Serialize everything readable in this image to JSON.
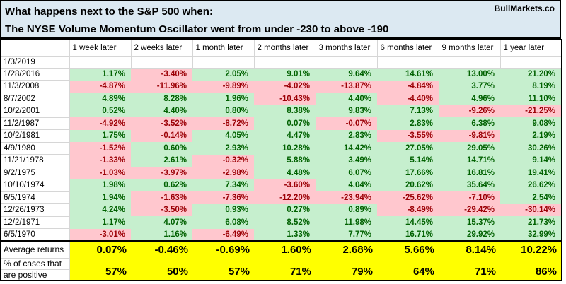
{
  "header": {
    "title_line1": "What happens next to the S&P 500 when:",
    "title_line2": "The NYSE Volume Momentum Oscillator went from under -230 to above -190",
    "brand": "BullMarkets.co"
  },
  "chart_data": {
    "type": "table",
    "columns": [
      "1 week later",
      "2 weeks later",
      "1 month later",
      "2 months later",
      "3 months later",
      "6 months later",
      "9 months later",
      "1 year later"
    ],
    "empty_row_date": "1/3/2019",
    "rows": [
      {
        "date": "1/28/2016",
        "values": [
          "1.17%",
          "-3.40%",
          "2.05%",
          "9.01%",
          "9.64%",
          "14.61%",
          "13.00%",
          "21.20%"
        ]
      },
      {
        "date": "11/3/2008",
        "values": [
          "-4.87%",
          "-11.96%",
          "-9.89%",
          "-4.02%",
          "-13.87%",
          "-4.84%",
          "3.77%",
          "8.19%"
        ]
      },
      {
        "date": "8/7/2002",
        "values": [
          "4.89%",
          "8.28%",
          "1.96%",
          "-10.43%",
          "4.40%",
          "-4.40%",
          "4.96%",
          "11.10%"
        ]
      },
      {
        "date": "10/2/2001",
        "values": [
          "0.52%",
          "4.40%",
          "0.80%",
          "8.38%",
          "9.83%",
          "7.13%",
          "-9.26%",
          "-21.25%"
        ]
      },
      {
        "date": "11/2/1987",
        "values": [
          "-4.92%",
          "-3.52%",
          "-8.72%",
          "0.07%",
          "-0.07%",
          "2.83%",
          "6.38%",
          "9.08%"
        ]
      },
      {
        "date": "10/2/1981",
        "values": [
          "1.75%",
          "-0.14%",
          "4.05%",
          "4.47%",
          "2.83%",
          "-3.55%",
          "-9.81%",
          "2.19%"
        ]
      },
      {
        "date": "4/9/1980",
        "values": [
          "-1.52%",
          "0.60%",
          "2.93%",
          "10.28%",
          "14.42%",
          "27.05%",
          "29.05%",
          "30.26%"
        ]
      },
      {
        "date": "11/21/1978",
        "values": [
          "-1.33%",
          "2.61%",
          "-0.32%",
          "5.88%",
          "3.49%",
          "5.14%",
          "14.71%",
          "9.14%"
        ]
      },
      {
        "date": "9/2/1975",
        "values": [
          "-1.03%",
          "-3.97%",
          "-2.98%",
          "4.48%",
          "6.07%",
          "17.66%",
          "16.81%",
          "19.41%"
        ]
      },
      {
        "date": "10/10/1974",
        "values": [
          "1.98%",
          "0.62%",
          "7.34%",
          "-3.60%",
          "4.04%",
          "20.62%",
          "35.64%",
          "26.62%"
        ]
      },
      {
        "date": "6/5/1974",
        "values": [
          "1.94%",
          "-1.63%",
          "-7.36%",
          "-12.20%",
          "-23.94%",
          "-25.62%",
          "-7.10%",
          "2.54%"
        ]
      },
      {
        "date": "12/26/1973",
        "values": [
          "4.24%",
          "-3.50%",
          "0.93%",
          "0.27%",
          "0.89%",
          "-8.49%",
          "-29.42%",
          "-30.14%"
        ]
      },
      {
        "date": "12/2/1971",
        "values": [
          "1.17%",
          "4.07%",
          "6.08%",
          "8.52%",
          "11.98%",
          "14.45%",
          "15.37%",
          "21.73%"
        ]
      },
      {
        "date": "6/5/1970",
        "values": [
          "-3.01%",
          "1.16%",
          "-6.49%",
          "1.33%",
          "7.77%",
          "16.71%",
          "29.92%",
          "32.99%"
        ]
      }
    ],
    "summary": {
      "average_label": "Average returns",
      "average_values": [
        "0.07%",
        "-0.46%",
        "-0.69%",
        "1.60%",
        "2.68%",
        "5.66%",
        "8.14%",
        "10.22%"
      ],
      "positive_label_line1": "% of cases that",
      "positive_label_line2": "are positive",
      "positive_values": [
        "57%",
        "50%",
        "57%",
        "71%",
        "79%",
        "64%",
        "71%",
        "86%"
      ]
    }
  },
  "colors": {
    "positive_bg": "#c6efce",
    "positive_text": "#006100",
    "negative_bg": "#ffc7ce",
    "negative_text": "#9c0006",
    "summary_bg": "#ffff00",
    "title_bg": "#dce9f2"
  }
}
